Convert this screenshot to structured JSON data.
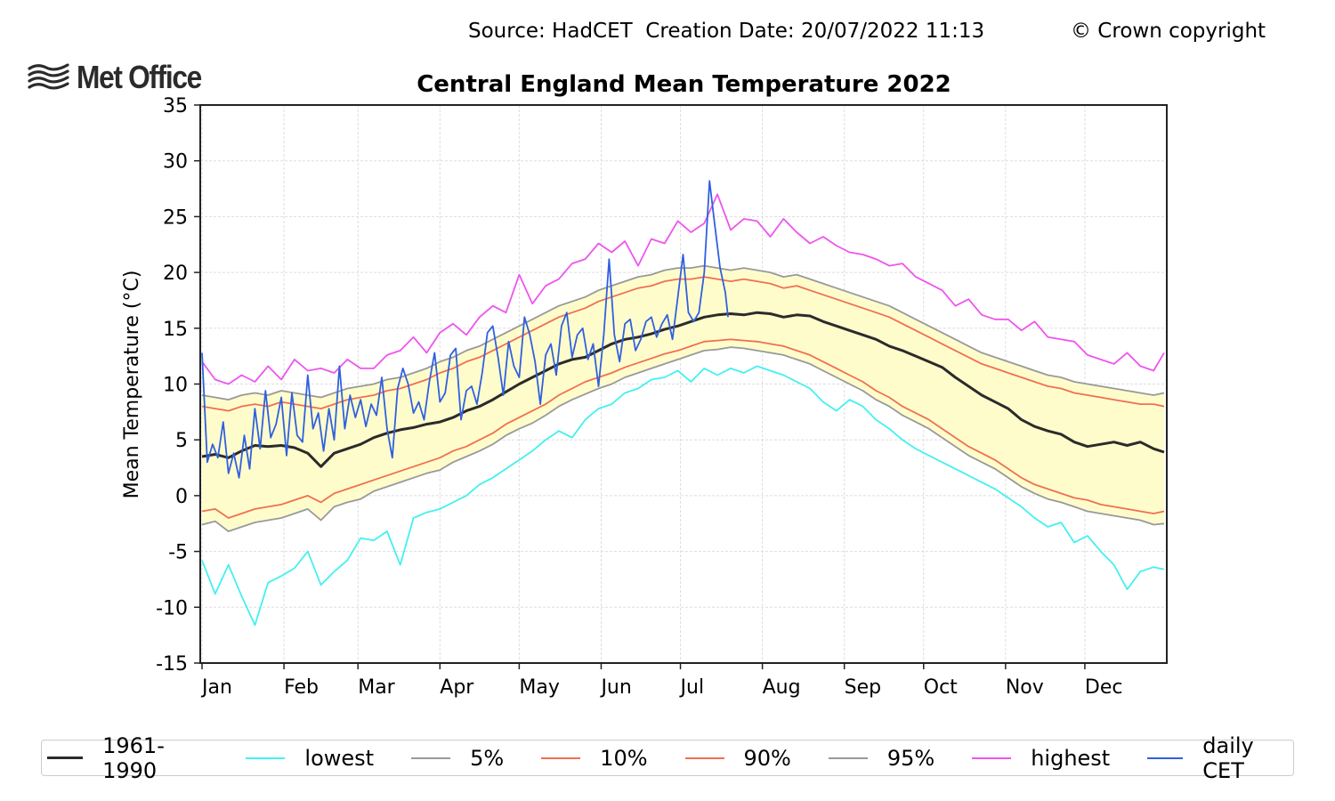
{
  "header": {
    "source": "Source: HadCET  Creation Date: 20/07/2022 11:13",
    "copyright": "© Crown copyright",
    "logo_text": "Met Office",
    "logo_icon": "wave-lines-icon"
  },
  "chart_data": {
    "type": "line",
    "title": "Central England Mean Temperature 2022",
    "xlabel": "",
    "ylabel": "Mean Temperature (°C)",
    "ylim": [
      -15,
      35
    ],
    "yticks": [
      35,
      30,
      25,
      20,
      15,
      10,
      5,
      0,
      -5,
      -10,
      -15
    ],
    "ytick_labels": [
      "35",
      "30",
      "25",
      "20",
      "15",
      "10",
      "5",
      "0",
      "-5",
      "-10",
      "-15"
    ],
    "xlim_days": [
      1,
      366
    ],
    "month_ticks_day": [
      1,
      32,
      60,
      91,
      121,
      152,
      182,
      213,
      244,
      274,
      305,
      335
    ],
    "month_labels": [
      "Jan",
      "Feb",
      "Mar",
      "Apr",
      "May",
      "Jun",
      "Jul",
      "Aug",
      "Sep",
      "Oct",
      "Nov",
      "Dec"
    ],
    "grid": true,
    "legend_placement": "bottom",
    "shaded_band": {
      "between": [
        "5%",
        "95%"
      ],
      "color": "#fffccc"
    },
    "x_days": [
      1,
      6,
      11,
      16,
      21,
      26,
      31,
      36,
      41,
      46,
      51,
      56,
      61,
      66,
      71,
      76,
      81,
      86,
      91,
      96,
      101,
      106,
      111,
      116,
      121,
      126,
      131,
      136,
      141,
      146,
      151,
      156,
      161,
      166,
      171,
      176,
      181,
      186,
      191,
      196,
      201,
      206,
      211,
      216,
      221,
      226,
      231,
      236,
      241,
      246,
      251,
      256,
      261,
      266,
      271,
      276,
      281,
      286,
      291,
      296,
      301,
      306,
      311,
      316,
      321,
      326,
      331,
      336,
      341,
      346,
      351,
      356,
      361,
      365
    ],
    "series": [
      {
        "name": "1961-1990",
        "color": "#2b2b2b",
        "values": [
          3.5,
          3.7,
          3.4,
          4.0,
          4.5,
          4.4,
          4.5,
          4.3,
          3.8,
          2.6,
          3.8,
          4.2,
          4.6,
          5.2,
          5.6,
          5.9,
          6.1,
          6.4,
          6.6,
          7.0,
          7.6,
          8.0,
          8.6,
          9.3,
          10.0,
          10.6,
          11.2,
          11.8,
          12.2,
          12.4,
          13.0,
          13.6,
          14.0,
          14.2,
          14.5,
          14.9,
          15.2,
          15.6,
          16.0,
          16.2,
          16.3,
          16.2,
          16.4,
          16.3,
          16.0,
          16.2,
          16.1,
          15.6,
          15.2,
          14.8,
          14.4,
          14.0,
          13.4,
          13.0,
          12.5,
          12.0,
          11.5,
          10.6,
          9.8,
          9.0,
          8.4,
          7.8,
          6.8,
          6.2,
          5.8,
          5.5,
          4.8,
          4.4,
          4.6,
          4.8,
          4.5,
          4.8,
          4.2,
          3.9
        ]
      },
      {
        "name": "lowest",
        "color": "#44f0f0",
        "values": [
          -5.8,
          -8.8,
          -6.2,
          -9.0,
          -11.6,
          -7.8,
          -7.2,
          -6.5,
          -5.0,
          -8.0,
          -6.8,
          -5.8,
          -3.8,
          -4.0,
          -3.2,
          -6.2,
          -2.0,
          -1.5,
          -1.2,
          -0.6,
          0.0,
          1.0,
          1.6,
          2.4,
          3.2,
          4.0,
          5.0,
          5.8,
          5.2,
          6.8,
          7.8,
          8.2,
          9.2,
          9.6,
          10.4,
          10.6,
          11.2,
          10.2,
          11.4,
          10.8,
          11.4,
          11.0,
          11.6,
          11.2,
          10.8,
          10.2,
          9.6,
          8.4,
          7.6,
          8.6,
          8.0,
          6.8,
          6.0,
          5.0,
          4.2,
          3.6,
          3.0,
          2.4,
          1.8,
          1.2,
          0.6,
          -0.2,
          -1.0,
          -2.0,
          -2.8,
          -2.4,
          -4.2,
          -3.6,
          -5.0,
          -6.2,
          -8.4,
          -6.8,
          -6.4,
          -6.6
        ]
      },
      {
        "name": "5%",
        "color": "#999999",
        "values": [
          -2.6,
          -2.3,
          -3.2,
          -2.8,
          -2.4,
          -2.2,
          -2.0,
          -1.6,
          -1.2,
          -2.2,
          -1.0,
          -0.6,
          -0.3,
          0.4,
          0.8,
          1.2,
          1.6,
          2.0,
          2.3,
          3.0,
          3.5,
          4.0,
          4.6,
          5.4,
          6.0,
          6.5,
          7.2,
          8.0,
          8.6,
          9.1,
          9.6,
          10.0,
          10.6,
          11.0,
          11.4,
          11.8,
          12.2,
          12.6,
          13.0,
          13.1,
          13.3,
          13.2,
          13.0,
          12.8,
          12.6,
          12.2,
          11.8,
          11.2,
          10.6,
          10.0,
          9.4,
          8.6,
          8.0,
          7.2,
          6.6,
          6.0,
          5.2,
          4.4,
          3.6,
          3.0,
          2.4,
          1.6,
          0.8,
          0.2,
          -0.3,
          -0.6,
          -1.0,
          -1.4,
          -1.6,
          -1.8,
          -2.0,
          -2.2,
          -2.6,
          -2.5
        ]
      },
      {
        "name": "10%",
        "color": "#f07050",
        "values": [
          -1.4,
          -1.2,
          -2.0,
          -1.6,
          -1.2,
          -1.0,
          -0.8,
          -0.4,
          0.0,
          -0.6,
          0.2,
          0.6,
          1.0,
          1.4,
          1.8,
          2.2,
          2.6,
          3.0,
          3.4,
          4.0,
          4.4,
          5.0,
          5.6,
          6.4,
          7.0,
          7.6,
          8.2,
          9.0,
          9.6,
          10.2,
          10.6,
          11.0,
          11.5,
          11.9,
          12.3,
          12.7,
          13.0,
          13.4,
          13.8,
          13.9,
          14.0,
          13.9,
          13.8,
          13.6,
          13.4,
          13.0,
          12.6,
          12.0,
          11.4,
          10.8,
          10.2,
          9.4,
          8.8,
          8.0,
          7.4,
          6.8,
          6.0,
          5.2,
          4.4,
          3.8,
          3.2,
          2.4,
          1.6,
          1.0,
          0.6,
          0.2,
          -0.2,
          -0.4,
          -0.8,
          -1.0,
          -1.2,
          -1.4,
          -1.6,
          -1.4
        ]
      },
      {
        "name": "90%",
        "color": "#f07050",
        "values": [
          8.0,
          7.8,
          7.6,
          8.0,
          8.2,
          8.0,
          8.4,
          8.2,
          8.0,
          7.8,
          8.2,
          8.6,
          8.8,
          9.0,
          9.4,
          9.6,
          10.0,
          10.4,
          11.0,
          11.4,
          12.0,
          12.4,
          13.0,
          13.6,
          14.2,
          14.8,
          15.4,
          16.0,
          16.4,
          16.8,
          17.4,
          17.8,
          18.2,
          18.6,
          18.8,
          19.2,
          19.4,
          19.4,
          19.6,
          19.4,
          19.2,
          19.4,
          19.2,
          19.0,
          18.6,
          18.8,
          18.4,
          18.0,
          17.6,
          17.2,
          16.8,
          16.4,
          16.0,
          15.4,
          14.8,
          14.2,
          13.6,
          13.0,
          12.4,
          11.8,
          11.4,
          11.0,
          10.6,
          10.2,
          9.8,
          9.6,
          9.2,
          9.0,
          8.8,
          8.6,
          8.4,
          8.2,
          8.2,
          8.0
        ]
      },
      {
        "name": "95%",
        "color": "#999999",
        "values": [
          9.0,
          8.8,
          8.6,
          9.0,
          9.2,
          9.0,
          9.4,
          9.2,
          9.0,
          8.8,
          9.2,
          9.6,
          9.8,
          10.0,
          10.4,
          10.6,
          11.0,
          11.4,
          12.0,
          12.4,
          13.0,
          13.4,
          14.0,
          14.6,
          15.2,
          15.8,
          16.4,
          17.0,
          17.4,
          17.8,
          18.4,
          18.8,
          19.2,
          19.6,
          19.8,
          20.2,
          20.4,
          20.4,
          20.6,
          20.4,
          20.2,
          20.4,
          20.2,
          20.0,
          19.6,
          19.8,
          19.4,
          19.0,
          18.6,
          18.2,
          17.8,
          17.4,
          17.0,
          16.4,
          15.8,
          15.2,
          14.6,
          14.0,
          13.4,
          12.8,
          12.4,
          12.0,
          11.6,
          11.2,
          10.8,
          10.6,
          10.2,
          10.0,
          9.8,
          9.6,
          9.4,
          9.2,
          9.0,
          9.2
        ]
      },
      {
        "name": "highest",
        "color": "#ee55ee",
        "values": [
          12.0,
          10.4,
          10.0,
          10.8,
          10.2,
          11.6,
          10.4,
          12.2,
          11.2,
          11.4,
          11.0,
          12.2,
          11.4,
          11.4,
          12.6,
          13.0,
          14.2,
          12.8,
          14.6,
          15.4,
          14.4,
          16.0,
          17.0,
          16.4,
          19.8,
          17.2,
          18.8,
          19.4,
          20.8,
          21.2,
          22.6,
          21.8,
          22.8,
          20.6,
          23.0,
          22.6,
          24.6,
          23.6,
          24.4,
          27.0,
          23.8,
          24.8,
          24.6,
          23.2,
          24.8,
          23.6,
          22.6,
          23.2,
          22.4,
          21.8,
          21.6,
          21.2,
          20.6,
          20.8,
          19.6,
          19.0,
          18.4,
          17.0,
          17.6,
          16.2,
          15.8,
          15.8,
          14.8,
          15.6,
          14.2,
          14.0,
          13.8,
          12.6,
          12.2,
          11.8,
          12.8,
          11.6,
          11.2,
          12.8
        ]
      },
      {
        "name": "daily CET",
        "color": "#3060e0",
        "x_days": [
          1,
          3,
          5,
          7,
          9,
          11,
          13,
          15,
          17,
          19,
          21,
          23,
          25,
          27,
          29,
          31,
          33,
          35,
          37,
          39,
          41,
          43,
          45,
          47,
          49,
          51,
          53,
          55,
          57,
          59,
          61,
          63,
          65,
          67,
          69,
          71,
          73,
          75,
          77,
          79,
          81,
          83,
          85,
          87,
          89,
          91,
          93,
          95,
          97,
          99,
          101,
          103,
          105,
          107,
          109,
          111,
          113,
          115,
          117,
          119,
          121,
          123,
          125,
          127,
          129,
          131,
          133,
          135,
          137,
          139,
          141,
          143,
          145,
          147,
          149,
          151,
          153,
          155,
          157,
          159,
          161,
          163,
          165,
          167,
          169,
          171,
          173,
          175,
          177,
          179,
          181,
          183,
          185,
          187,
          189,
          191,
          193,
          195,
          197,
          199,
          200
        ],
        "values": [
          12.8,
          3.0,
          4.6,
          3.4,
          6.6,
          2.0,
          3.8,
          1.6,
          5.4,
          2.4,
          7.8,
          4.2,
          9.4,
          5.2,
          6.4,
          8.8,
          3.6,
          9.2,
          5.4,
          4.8,
          10.8,
          6.0,
          7.4,
          4.0,
          7.8,
          5.0,
          11.6,
          6.0,
          9.0,
          7.0,
          8.6,
          6.2,
          8.2,
          7.2,
          10.6,
          6.0,
          3.4,
          9.6,
          11.4,
          10.0,
          7.4,
          8.4,
          6.8,
          10.2,
          12.8,
          8.4,
          9.2,
          12.6,
          13.2,
          6.8,
          9.4,
          9.8,
          8.2,
          11.0,
          14.6,
          15.2,
          12.4,
          9.0,
          13.8,
          11.6,
          10.6,
          16.0,
          14.4,
          12.0,
          8.2,
          12.6,
          13.6,
          10.8,
          15.2,
          16.4,
          12.4,
          14.4,
          15.0,
          12.2,
          13.6,
          9.8,
          14.4,
          21.2,
          14.4,
          12.0,
          15.4,
          15.8,
          13.0,
          14.0,
          15.6,
          16.0,
          14.2,
          15.4,
          16.2,
          14.0,
          17.8,
          21.6,
          16.4,
          15.6,
          16.4,
          20.0,
          28.2,
          24.2,
          20.4,
          18.2,
          16.0
        ]
      }
    ],
    "legend": [
      "1961-1990",
      "lowest",
      "5%",
      "10%",
      "90%",
      "95%",
      "highest",
      "daily CET"
    ]
  },
  "legend_items": [
    {
      "label": "1961-1990",
      "color": "#2b2b2b"
    },
    {
      "label": "lowest",
      "color": "#44f0f0"
    },
    {
      "label": "5%",
      "color": "#999999"
    },
    {
      "label": "10%",
      "color": "#f07050"
    },
    {
      "label": "90%",
      "color": "#f07050"
    },
    {
      "label": "95%",
      "color": "#999999"
    },
    {
      "label": "highest",
      "color": "#ee55ee"
    },
    {
      "label": "daily CET",
      "color": "#3060e0"
    }
  ]
}
